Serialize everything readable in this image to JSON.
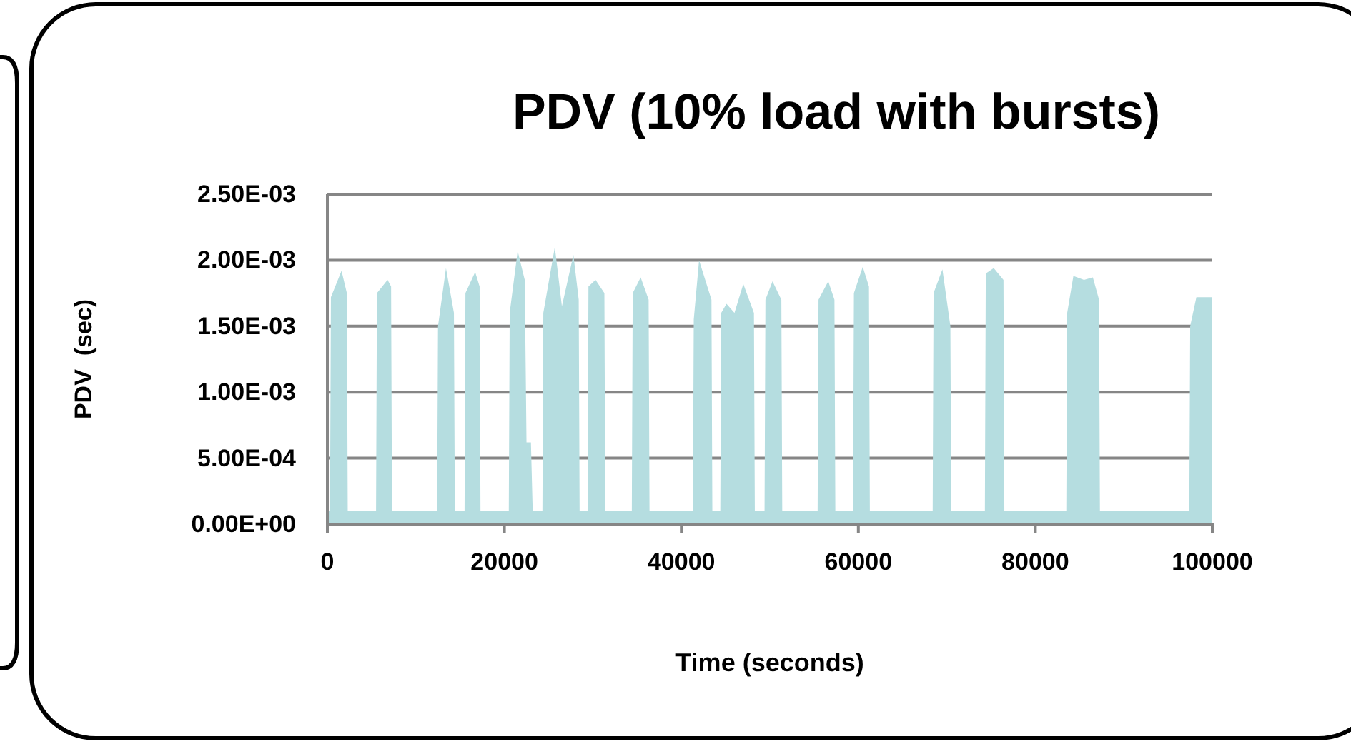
{
  "chart_data": {
    "type": "area",
    "title": "PDV (10% load with bursts)",
    "xlabel": "Time (seconds)",
    "ylabel": "PDV  (sec)",
    "x": [
      0,
      300,
      400,
      1600,
      2200,
      2300,
      5500,
      5600,
      6800,
      7200,
      7300,
      12400,
      12500,
      13400,
      14300,
      14400,
      15500,
      15600,
      16700,
      17200,
      17300,
      20500,
      20600,
      21500,
      22300,
      22500,
      23000,
      23200,
      24300,
      24400,
      25700,
      26500,
      27800,
      28400,
      28500,
      29400,
      29500,
      30300,
      31300,
      31400,
      34400,
      34500,
      35400,
      36300,
      36400,
      41300,
      41400,
      42000,
      43400,
      43500,
      44400,
      44500,
      45100,
      46000,
      47000,
      48200,
      48300,
      49400,
      49500,
      50300,
      51300,
      51400,
      55400,
      55500,
      56600,
      57300,
      57400,
      59400,
      59500,
      60500,
      61200,
      61300,
      68400,
      68500,
      69500,
      70400,
      70500,
      74300,
      74400,
      75300,
      76400,
      76500,
      83500,
      83600,
      84300,
      85500,
      86500,
      87200,
      87300,
      97400,
      97500,
      98200,
      100000
    ],
    "series": [
      {
        "color": "#b5dde0",
        "values": [
          0.0001,
          0.0001,
          0.00172,
          0.00192,
          0.00175,
          0.0001,
          0.0001,
          0.00175,
          0.00185,
          0.0018,
          0.0001,
          0.0001,
          0.0015,
          0.00194,
          0.0016,
          0.0001,
          0.0001,
          0.00175,
          0.00191,
          0.0018,
          0.0001,
          0.0001,
          0.0016,
          0.00207,
          0.00185,
          0.00062,
          0.00062,
          0.0001,
          0.0001,
          0.0016,
          0.0021,
          0.00165,
          0.00204,
          0.0017,
          0.0001,
          0.0001,
          0.0018,
          0.00185,
          0.00175,
          0.0001,
          0.0001,
          0.00175,
          0.00187,
          0.0017,
          0.0001,
          0.0001,
          0.00155,
          0.002,
          0.0017,
          0.0001,
          0.0001,
          0.0016,
          0.00167,
          0.0016,
          0.00182,
          0.0016,
          0.0001,
          0.0001,
          0.0017,
          0.00184,
          0.0017,
          0.0001,
          0.0001,
          0.0017,
          0.00184,
          0.0017,
          0.0001,
          0.0001,
          0.00175,
          0.00195,
          0.0018,
          0.0001,
          0.0001,
          0.00175,
          0.00193,
          0.0015,
          0.0001,
          0.0001,
          0.0019,
          0.00194,
          0.00185,
          0.0001,
          0.0001,
          0.0016,
          0.00188,
          0.00185,
          0.00187,
          0.0017,
          0.0001,
          0.0001,
          0.0015,
          0.00172,
          0.00172
        ]
      }
    ],
    "xlim": [
      0,
      100000
    ],
    "xticks": [
      0,
      20000,
      40000,
      60000,
      80000,
      100000
    ],
    "ylim": [
      0,
      0.0025
    ],
    "yticks": [
      {
        "value": 0,
        "label": "0.00E+00"
      },
      {
        "value": 0.0005,
        "label": "5.00E-04"
      },
      {
        "value": 0.001,
        "label": "1.00E-03"
      },
      {
        "value": 0.0015,
        "label": "1.50E-03"
      },
      {
        "value": 0.002,
        "label": "2.00E-03"
      },
      {
        "value": 0.0025,
        "label": "2.50E-03"
      }
    ],
    "grid": "y"
  }
}
